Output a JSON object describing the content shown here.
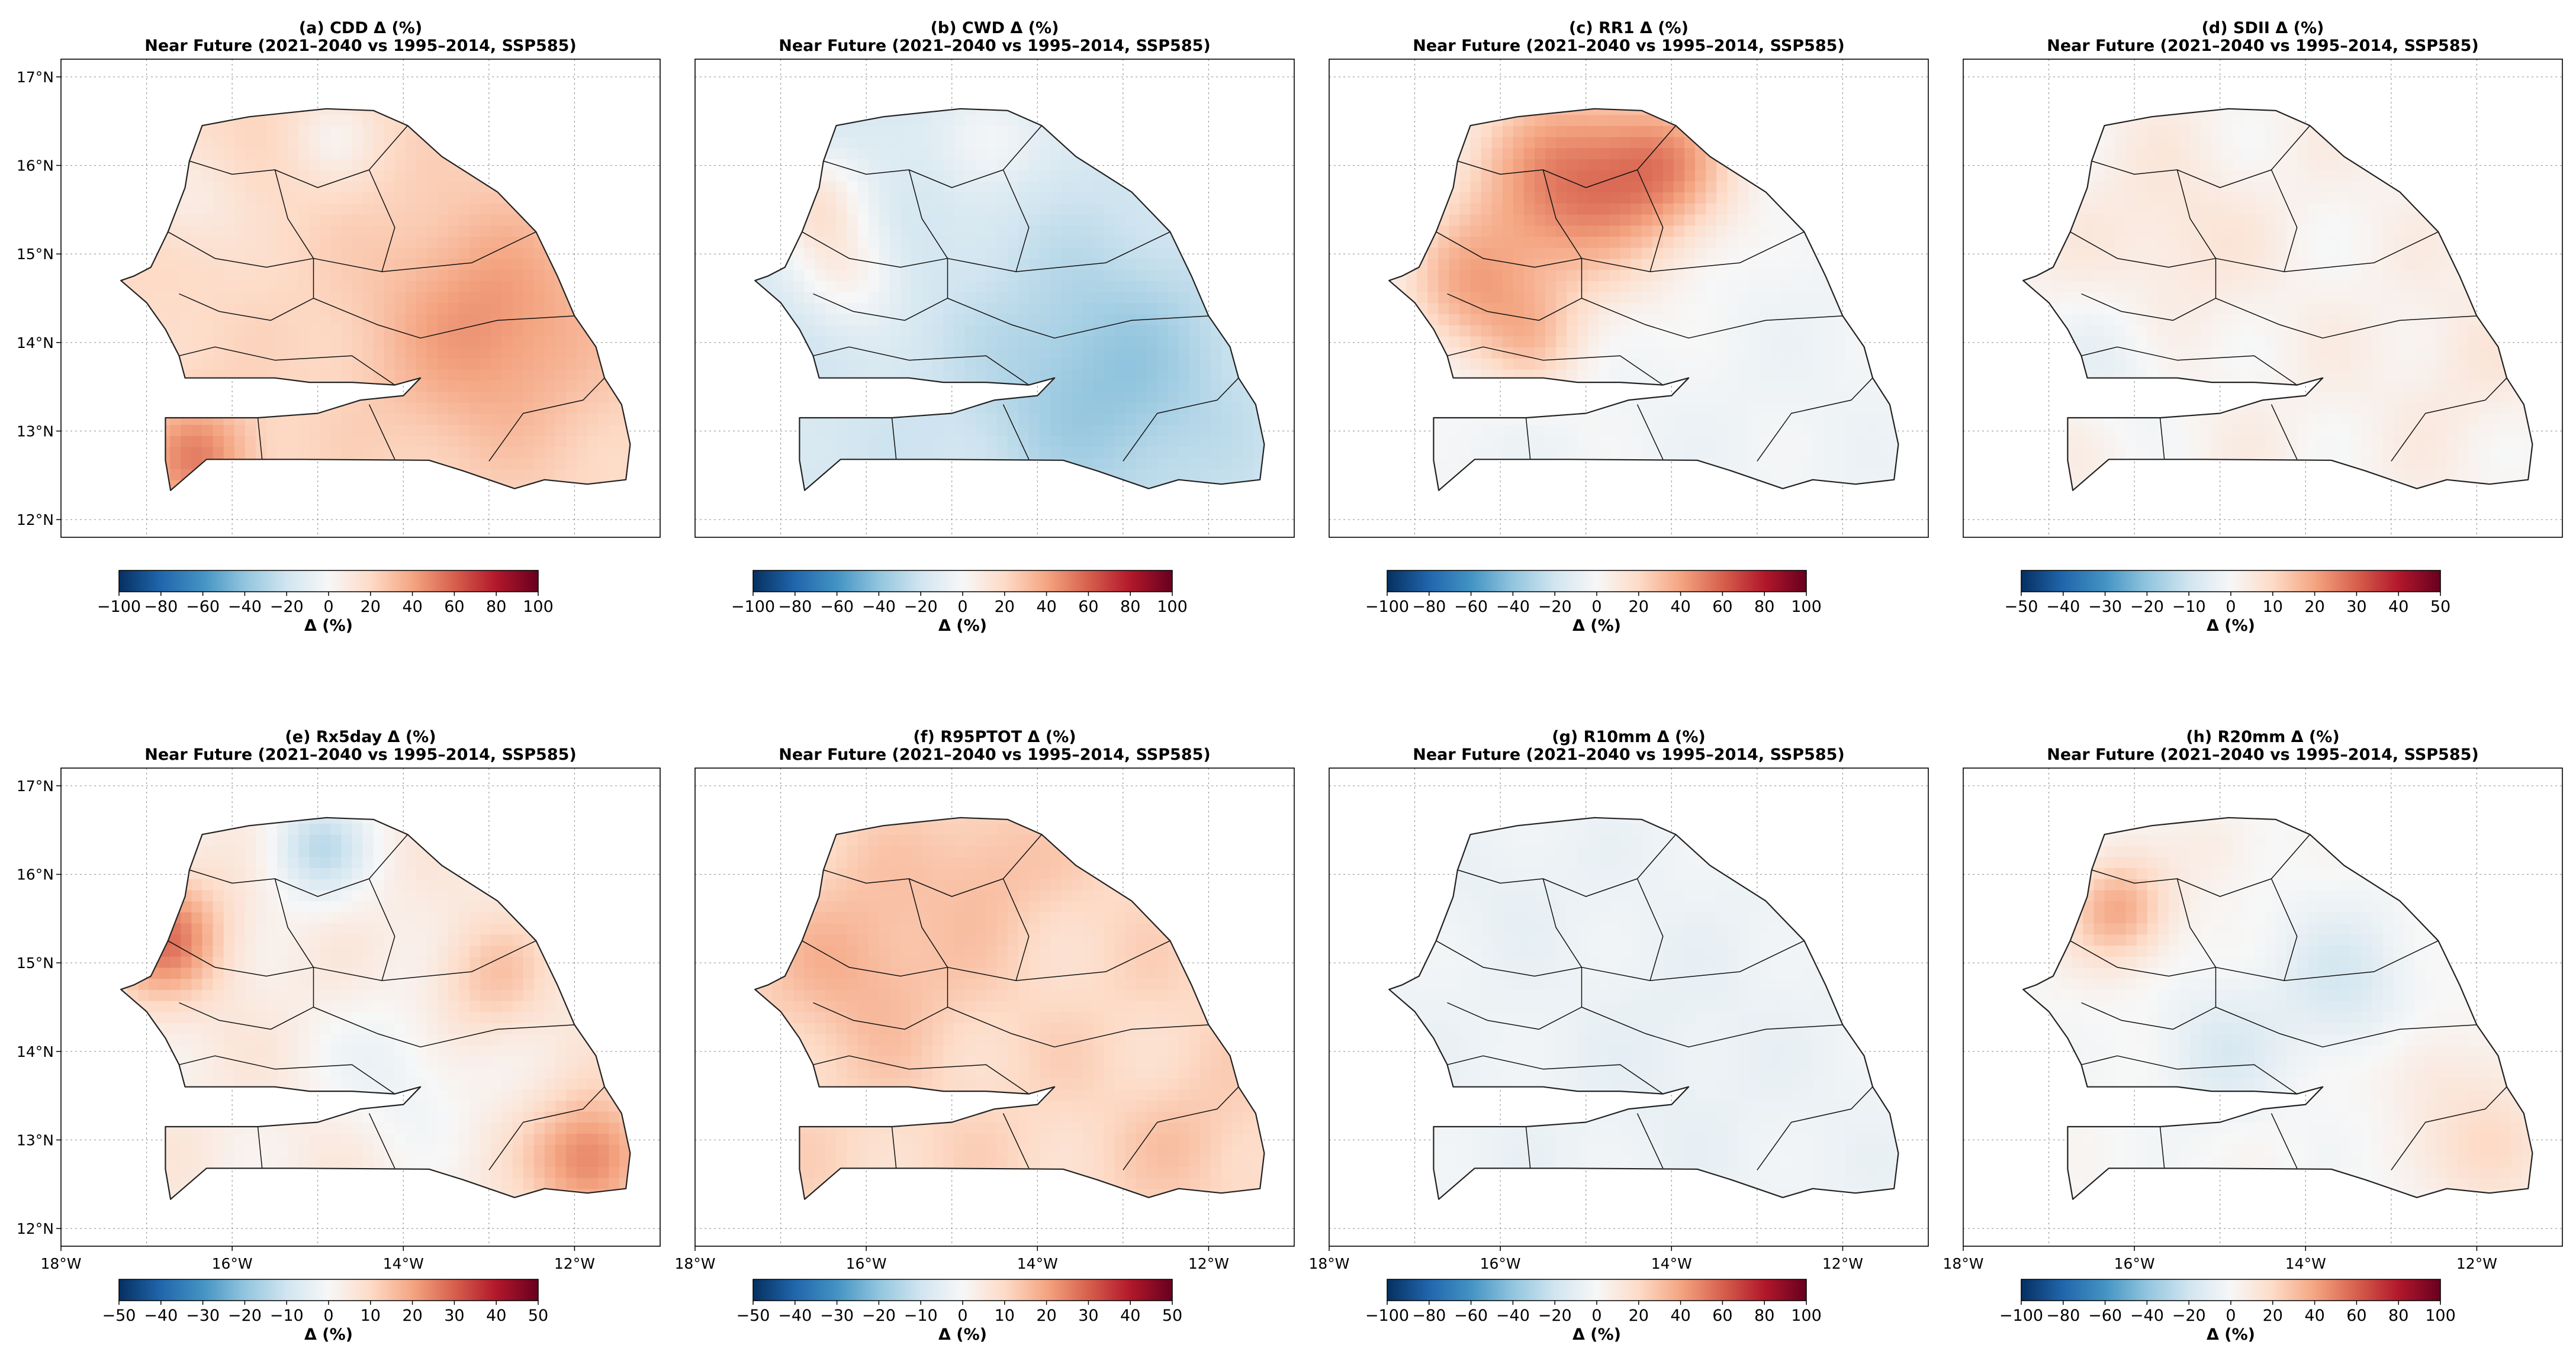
{
  "figure": {
    "period_label": "Near Future (2021–2040 vs 1995–2014, SSP585)",
    "colorbar_label": "Δ (%)",
    "colormap": [
      "#053061",
      "#2166ac",
      "#4393c3",
      "#92c5de",
      "#d1e5f0",
      "#f7f7f7",
      "#fddbc7",
      "#f4a582",
      "#d6604d",
      "#b2182b",
      "#67001f"
    ]
  },
  "chart_data": [
    {
      "type": "heatmap",
      "panel": "a",
      "title": "(a) CDD Δ (%)",
      "subtitle": "Near Future (2021–2040 vs 1995–2014, SSP585)",
      "lon_ticks": [],
      "lat_ticks": [
        "17°N",
        "16°N",
        "15°N",
        "14°N",
        "13°N",
        "12°N"
      ],
      "xlim": [
        -18,
        -11
      ],
      "ylim": [
        11.8,
        17.2
      ],
      "colorbar": {
        "vmin": -100,
        "vmax": 100,
        "ticks": [
          "−100",
          "−80",
          "−60",
          "−40",
          "−20",
          "0",
          "20",
          "40",
          "60",
          "80",
          "100"
        ],
        "label": "Δ (%)"
      },
      "base": 20,
      "hotspots": [
        {
          "lon": -13.0,
          "lat": 14.2,
          "r": 1.3,
          "v": 25
        },
        {
          "lon": -16.4,
          "lat": 12.7,
          "r": 0.6,
          "v": 30
        },
        {
          "lon": -16.5,
          "lat": 15.6,
          "r": 0.6,
          "v": -12
        },
        {
          "lon": -14.8,
          "lat": 16.3,
          "r": 0.5,
          "v": -14
        }
      ]
    },
    {
      "type": "heatmap",
      "panel": "b",
      "title": "(b) CWD Δ (%)",
      "subtitle": "Near Future (2021–2040 vs 1995–2014, SSP585)",
      "lon_ticks": [],
      "lat_ticks": [],
      "xlim": [
        -18,
        -11
      ],
      "ylim": [
        11.8,
        17.2
      ],
      "colorbar": {
        "vmin": -100,
        "vmax": 100,
        "ticks": [
          "−100",
          "−80",
          "−60",
          "−40",
          "−20",
          "0",
          "20",
          "40",
          "60",
          "80",
          "100"
        ],
        "label": "Δ (%)"
      },
      "base": -18,
      "hotspots": [
        {
          "lon": -13.2,
          "lat": 13.6,
          "r": 1.4,
          "v": -22
        },
        {
          "lon": -16.6,
          "lat": 15.6,
          "r": 0.6,
          "v": 30
        },
        {
          "lon": -16.2,
          "lat": 14.8,
          "r": 0.6,
          "v": 22
        },
        {
          "lon": -14.6,
          "lat": 16.3,
          "r": 0.6,
          "v": 18
        }
      ]
    },
    {
      "type": "heatmap",
      "panel": "c",
      "title": "(c) RR1 Δ (%)",
      "subtitle": "Near Future (2021–2040 vs 1995–2014, SSP585)",
      "lon_ticks": [],
      "lat_ticks": [],
      "xlim": [
        -18,
        -11
      ],
      "ylim": [
        11.8,
        17.2
      ],
      "colorbar": {
        "vmin": -100,
        "vmax": 100,
        "ticks": [
          "−100",
          "−80",
          "−60",
          "−40",
          "−20",
          "0",
          "20",
          "40",
          "60",
          "80",
          "100"
        ],
        "label": "Δ (%)"
      },
      "base": -4,
      "hotspots": [
        {
          "lon": -15.2,
          "lat": 15.8,
          "r": 1.2,
          "v": 55
        },
        {
          "lon": -16.4,
          "lat": 14.6,
          "r": 0.8,
          "v": 35
        },
        {
          "lon": -14.0,
          "lat": 16.0,
          "r": 0.8,
          "v": 35
        },
        {
          "lon": -15.6,
          "lat": 14.0,
          "r": 0.6,
          "v": 22
        }
      ]
    },
    {
      "type": "heatmap",
      "panel": "d",
      "title": "(d) SDII Δ (%)",
      "subtitle": "Near Future (2021–2040 vs 1995–2014, SSP585)",
      "lon_ticks": [],
      "lat_ticks": [],
      "xlim": [
        -18,
        -11
      ],
      "ylim": [
        11.8,
        17.2
      ],
      "colorbar": {
        "vmin": -50,
        "vmax": 50,
        "ticks": [
          "−50",
          "−40",
          "−30",
          "−20",
          "−10",
          "0",
          "10",
          "20",
          "30",
          "40",
          "50"
        ],
        "label": "Δ (%)"
      },
      "base": 2,
      "hotspots": [
        {
          "lon": -15.6,
          "lat": 15.2,
          "r": 0.9,
          "v": 5
        },
        {
          "lon": -16.2,
          "lat": 13.8,
          "r": 0.7,
          "v": -6
        },
        {
          "lon": -12.2,
          "lat": 13.8,
          "r": 0.8,
          "v": 3
        }
      ]
    },
    {
      "type": "heatmap",
      "panel": "e",
      "title": "(e) Rx5day Δ (%)",
      "subtitle": "Near Future (2021–2040 vs 1995–2014, SSP585)",
      "lon_ticks": [
        "18°W",
        "16°W",
        "14°W",
        "12°W"
      ],
      "lat_ticks": [
        "17°N",
        "16°N",
        "15°N",
        "14°N",
        "13°N",
        "12°N"
      ],
      "xlim": [
        -18,
        -11
      ],
      "ylim": [
        11.8,
        17.2
      ],
      "colorbar": {
        "vmin": -50,
        "vmax": 50,
        "ticks": [
          "−50",
          "−40",
          "−30",
          "−20",
          "−10",
          "0",
          "10",
          "20",
          "30",
          "40",
          "50"
        ],
        "label": "Δ (%)"
      },
      "base": 4,
      "hotspots": [
        {
          "lon": -16.8,
          "lat": 15.3,
          "r": 0.7,
          "v": 22
        },
        {
          "lon": -15.0,
          "lat": 16.3,
          "r": 0.6,
          "v": -16
        },
        {
          "lon": -14.0,
          "lat": 13.8,
          "r": 0.9,
          "v": -7
        },
        {
          "lon": -11.8,
          "lat": 12.8,
          "r": 0.7,
          "v": 22
        },
        {
          "lon": -13.0,
          "lat": 14.8,
          "r": 0.7,
          "v": 10
        }
      ]
    },
    {
      "type": "heatmap",
      "panel": "f",
      "title": "(f) R95PTOT Δ (%)",
      "subtitle": "Near Future (2021–2040 vs 1995–2014, SSP585)",
      "lon_ticks": [
        "18°W",
        "16°W",
        "14°W",
        "12°W"
      ],
      "lat_ticks": [],
      "xlim": [
        -18,
        -11
      ],
      "ylim": [
        11.8,
        17.2
      ],
      "colorbar": {
        "vmin": -50,
        "vmax": 50,
        "ticks": [
          "−50",
          "−40",
          "−30",
          "−20",
          "−10",
          "0",
          "10",
          "20",
          "30",
          "40",
          "50"
        ],
        "label": "Δ (%)"
      },
      "base": 10,
      "hotspots": [
        {
          "lon": -16.0,
          "lat": 15.0,
          "r": 1.0,
          "v": 8
        },
        {
          "lon": -14.6,
          "lat": 16.1,
          "r": 0.7,
          "v": 6
        },
        {
          "lon": -12.2,
          "lat": 13.0,
          "r": 0.7,
          "v": 4
        }
      ]
    },
    {
      "type": "heatmap",
      "panel": "g",
      "title": "(g) R10mm Δ (%)",
      "subtitle": "Near Future (2021–2040 vs 1995–2014, SSP585)",
      "lon_ticks": [
        "18°W",
        "16°W",
        "14°W",
        "12°W"
      ],
      "lat_ticks": [],
      "xlim": [
        -18,
        -11
      ],
      "ylim": [
        11.8,
        17.2
      ],
      "colorbar": {
        "vmin": -100,
        "vmax": 100,
        "ticks": [
          "−100",
          "−80",
          "−60",
          "−40",
          "−20",
          "0",
          "20",
          "40",
          "60",
          "80",
          "100"
        ],
        "label": "Δ (%)"
      },
      "base": -5,
      "hotspots": [
        {
          "lon": -14.0,
          "lat": 14.0,
          "r": 1.2,
          "v": -3
        },
        {
          "lon": -15.8,
          "lat": 15.8,
          "r": 0.6,
          "v": -3
        }
      ]
    },
    {
      "type": "heatmap",
      "panel": "h",
      "title": "(h) R20mm Δ (%)",
      "subtitle": "Near Future (2021–2040 vs 1995–2014, SSP585)",
      "lon_ticks": [
        "18°W",
        "16°W",
        "14°W",
        "12°W"
      ],
      "lat_ticks": [],
      "xlim": [
        -18,
        -11
      ],
      "ylim": [
        11.8,
        17.2
      ],
      "colorbar": {
        "vmin": -100,
        "vmax": 100,
        "ticks": [
          "−100",
          "−80",
          "−60",
          "−40",
          "−20",
          "0",
          "20",
          "40",
          "60",
          "80",
          "100"
        ],
        "label": "Δ (%)"
      },
      "base": 0,
      "hotspots": [
        {
          "lon": -16.2,
          "lat": 15.6,
          "r": 0.6,
          "v": 38
        },
        {
          "lon": -13.6,
          "lat": 14.8,
          "r": 0.8,
          "v": -16
        },
        {
          "lon": -15.0,
          "lat": 14.0,
          "r": 0.7,
          "v": -14
        },
        {
          "lon": -11.8,
          "lat": 12.9,
          "r": 0.7,
          "v": 22
        },
        {
          "lon": -12.6,
          "lat": 13.8,
          "r": 0.6,
          "v": 10
        },
        {
          "lon": -15.0,
          "lat": 16.3,
          "r": 0.5,
          "v": 8
        }
      ]
    }
  ],
  "geo": {
    "senegal_outline": [
      [
        -17.15,
        14.75
      ],
      [
        -16.95,
        14.85
      ],
      [
        -16.75,
        15.25
      ],
      [
        -16.55,
        15.75
      ],
      [
        -16.5,
        16.05
      ],
      [
        -16.35,
        16.45
      ],
      [
        -15.8,
        16.55
      ],
      [
        -14.9,
        16.64
      ],
      [
        -14.35,
        16.62
      ],
      [
        -13.95,
        16.45
      ],
      [
        -13.55,
        16.1
      ],
      [
        -12.9,
        15.7
      ],
      [
        -12.45,
        15.25
      ],
      [
        -12.2,
        14.75
      ],
      [
        -12.0,
        14.3
      ],
      [
        -11.75,
        13.95
      ],
      [
        -11.65,
        13.6
      ],
      [
        -11.45,
        13.3
      ],
      [
        -11.35,
        12.85
      ],
      [
        -11.4,
        12.45
      ],
      [
        -11.85,
        12.4
      ],
      [
        -12.35,
        12.45
      ],
      [
        -12.7,
        12.35
      ],
      [
        -13.3,
        12.55
      ],
      [
        -13.7,
        12.67
      ],
      [
        -15.2,
        12.68
      ],
      [
        -16.3,
        12.68
      ],
      [
        -16.72,
        12.33
      ],
      [
        -16.78,
        12.67
      ],
      [
        -16.78,
        13.15
      ],
      [
        -15.7,
        13.15
      ],
      [
        -15.0,
        13.2
      ],
      [
        -14.5,
        13.35
      ],
      [
        -14.0,
        13.4
      ],
      [
        -13.8,
        13.6
      ],
      [
        -14.1,
        13.52
      ],
      [
        -14.6,
        13.55
      ],
      [
        -15.1,
        13.55
      ],
      [
        -15.5,
        13.6
      ],
      [
        -16.55,
        13.6
      ],
      [
        -16.62,
        13.85
      ],
      [
        -16.78,
        14.15
      ],
      [
        -17.0,
        14.45
      ],
      [
        -17.3,
        14.7
      ],
      [
        -17.15,
        14.75
      ]
    ],
    "region_boundaries": [
      [
        [
          -16.5,
          16.05
        ],
        [
          -16.0,
          15.9
        ],
        [
          -15.5,
          15.95
        ],
        [
          -15.0,
          15.75
        ],
        [
          -14.4,
          15.95
        ],
        [
          -13.95,
          16.45
        ]
      ],
      [
        [
          -15.5,
          15.95
        ],
        [
          -15.35,
          15.4
        ],
        [
          -15.05,
          14.95
        ],
        [
          -15.6,
          14.85
        ],
        [
          -16.2,
          14.95
        ],
        [
          -16.75,
          15.25
        ]
      ],
      [
        [
          -14.4,
          15.95
        ],
        [
          -14.1,
          15.3
        ],
        [
          -14.25,
          14.8
        ],
        [
          -15.05,
          14.95
        ]
      ],
      [
        [
          -15.05,
          14.95
        ],
        [
          -15.05,
          14.5
        ],
        [
          -15.55,
          14.25
        ],
        [
          -16.15,
          14.35
        ],
        [
          -16.62,
          14.55
        ]
      ],
      [
        [
          -14.25,
          14.8
        ],
        [
          -13.2,
          14.9
        ],
        [
          -12.45,
          15.25
        ]
      ],
      [
        [
          -15.05,
          14.5
        ],
        [
          -14.3,
          14.2
        ],
        [
          -13.8,
          14.05
        ],
        [
          -12.9,
          14.25
        ],
        [
          -12.0,
          14.3
        ]
      ],
      [
        [
          -16.62,
          13.85
        ],
        [
          -16.2,
          13.95
        ],
        [
          -15.5,
          13.8
        ],
        [
          -14.6,
          13.85
        ],
        [
          -14.1,
          13.52
        ]
      ],
      [
        [
          -15.7,
          13.15
        ],
        [
          -15.65,
          12.68
        ]
      ],
      [
        [
          -14.4,
          13.3
        ],
        [
          -14.1,
          12.68
        ]
      ],
      [
        [
          -13.0,
          12.66
        ],
        [
          -12.6,
          13.2
        ],
        [
          -11.9,
          13.35
        ],
        [
          -11.65,
          13.6
        ]
      ]
    ]
  }
}
